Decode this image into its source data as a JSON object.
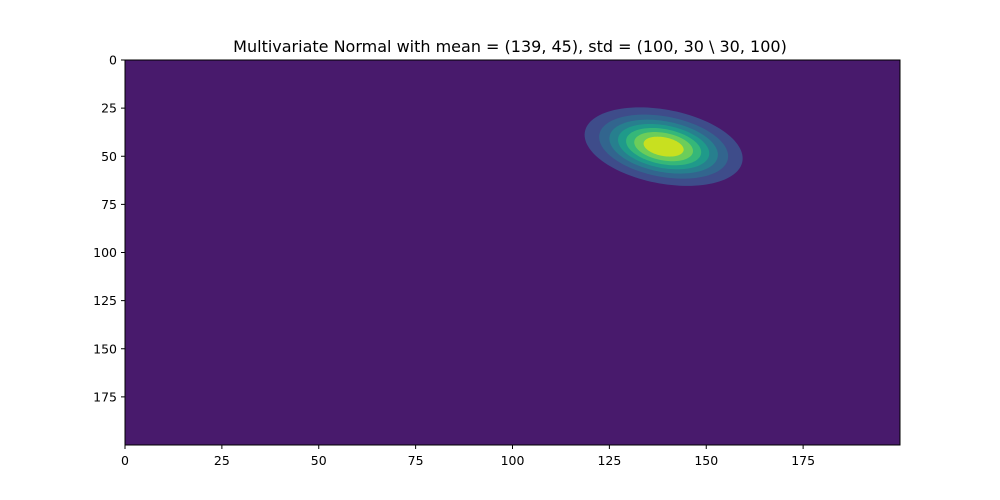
{
  "chart_data": {
    "type": "heatmap",
    "title": "Multivariate Normal with mean = (139, 45), std = (100, 30 \\ 30, 100)",
    "xlabel": "",
    "ylabel": "",
    "mean": [
      139,
      45
    ],
    "covariance": [
      [
        100,
        30
      ],
      [
        30,
        100
      ]
    ],
    "xlim": [
      0,
      200
    ],
    "ylim": [
      200,
      0
    ],
    "y_inverted": true,
    "x_ticks": [
      0,
      25,
      50,
      75,
      100,
      125,
      150,
      175
    ],
    "y_ticks": [
      0,
      25,
      50,
      75,
      100,
      125,
      150,
      175
    ],
    "contour_levels": 7,
    "colors": {
      "background_level": "#481a6c",
      "levels": [
        "#472f7d",
        "#3e4c8a",
        "#32658e",
        "#277f8e",
        "#1f9a8a",
        "#35b779",
        "#6ccd5a",
        "#c8e020"
      ]
    },
    "grid": false,
    "legend": "none"
  }
}
